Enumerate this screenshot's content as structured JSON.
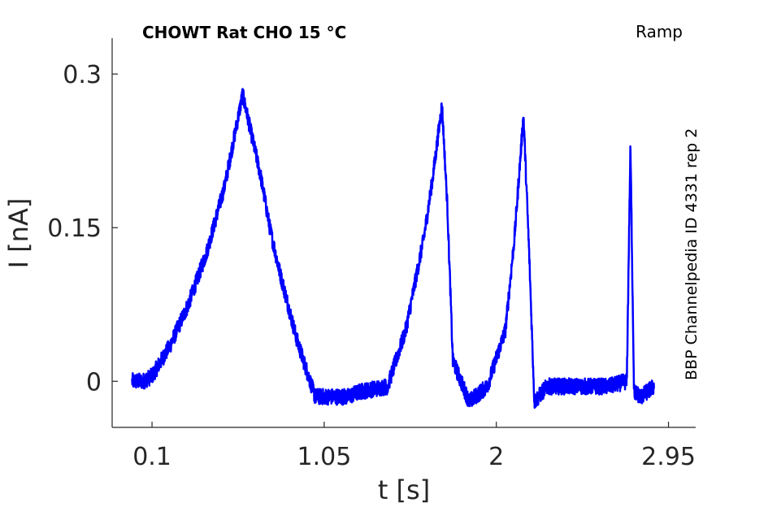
{
  "colors": {
    "trace": "#0000ff",
    "axis": "#262626",
    "text": "#000000"
  },
  "chart_data": {
    "type": "line",
    "title": "CHOWT  Rat  CHO  15 °C",
    "protocol_label": "Ramp",
    "side_label": "BBP Channelpedia ID 4331 rep 2",
    "xlabel": "t [s]",
    "ylabel": "I [nA]",
    "xlim": [
      -0.12,
      3.1
    ],
    "ylim": [
      -0.045,
      0.335
    ],
    "x_ticks": [
      0.1,
      1.05,
      2,
      2.95
    ],
    "x_tick_labels": [
      "0.1",
      "1.05",
      "2",
      "2.95"
    ],
    "y_ticks": [
      0,
      0.15,
      0.3
    ],
    "y_tick_labels": [
      "0",
      "0.15",
      "0.3"
    ],
    "grid": false,
    "legend": "none",
    "series": [
      {
        "x": [
          -0.01,
          0.05,
          0.1,
          0.2,
          0.3,
          0.4,
          0.5,
          0.6,
          0.7,
          0.75,
          0.8,
          0.9,
          1.0,
          1.1,
          1.18,
          1.25,
          1.4,
          1.5,
          1.6,
          1.65,
          1.7,
          1.73,
          1.76,
          1.85,
          1.95,
          2.05,
          2.1,
          2.15,
          2.18,
          2.21,
          2.28,
          2.4,
          2.55,
          2.62,
          2.72,
          2.74,
          2.76,
          2.8,
          2.87
        ],
        "y": [
          0.0,
          0.0,
          0.005,
          0.035,
          0.075,
          0.125,
          0.19,
          0.28,
          0.2,
          0.15,
          0.11,
          0.04,
          -0.015,
          -0.015,
          -0.015,
          -0.01,
          -0.005,
          0.05,
          0.14,
          0.2,
          0.27,
          0.17,
          0.02,
          -0.02,
          -0.005,
          0.05,
          0.14,
          0.26,
          0.13,
          -0.02,
          -0.005,
          -0.005,
          -0.005,
          -0.005,
          0.0,
          0.23,
          -0.01,
          -0.015,
          -0.005
        ]
      }
    ]
  }
}
